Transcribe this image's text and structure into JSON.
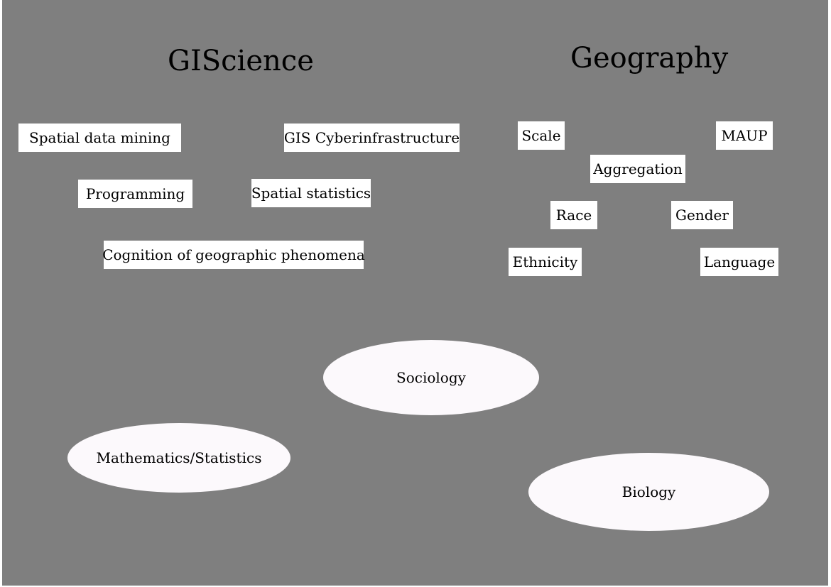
{
  "giscience": {
    "title": "GIScience",
    "terms": [
      "Spatial data mining",
      "GIS Cyberinfrastructure",
      "Programming",
      "Spatial statistics",
      "Cognition of geographic phenomena"
    ]
  },
  "geography": {
    "title": "Geography",
    "terms": [
      "Scale",
      "MAUP",
      "Aggregation",
      "Race",
      "Gender",
      "Ethnicity",
      "Language"
    ]
  },
  "disciplines": [
    "Sociology",
    "Mathematics/Statistics",
    "Biology"
  ],
  "colors": {
    "background": "#7f7f7f",
    "box_fill": "#ffffff",
    "ellipse_fill": "#fcf9fc",
    "text": "#000000"
  }
}
